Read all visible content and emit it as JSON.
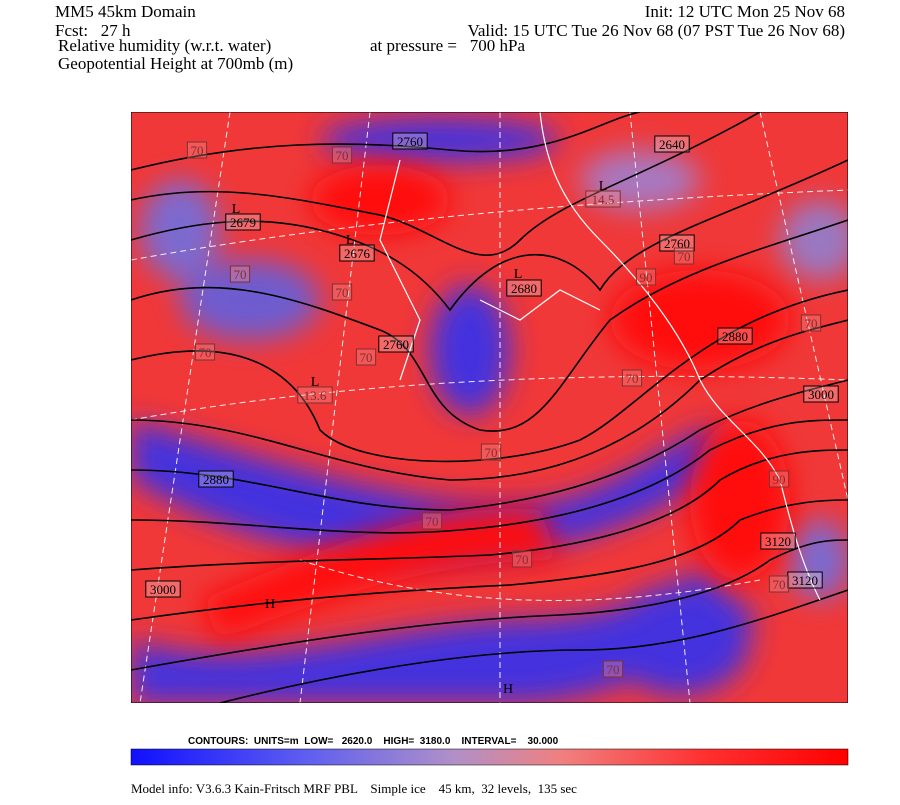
{
  "header": {
    "domain": "MM5 45km Domain",
    "forecast": "Fcst:   27 h",
    "field1": "Relative humidity (w.r.t. water)",
    "pressure": "at pressure =   700 hPa",
    "field2": "Geopotential Height at 700mb (m)",
    "init": "Init: 12 UTC Mon 25 Nov 68",
    "valid": "Valid: 15 UTC Tue 26 Nov 68 (07 PST Tue 26 Nov 68)"
  },
  "map": {
    "height_labels": [
      "2760",
      "2640",
      "2760",
      "2680",
      "2676",
      "2679",
      "2760",
      "2880",
      "3000",
      "2880",
      "3000",
      "3120",
      "3120"
    ],
    "low_markers": [
      "L",
      "L",
      "L",
      "L",
      "L"
    ],
    "high_markers": [
      "H",
      "H"
    ],
    "rh_labels": [
      "70",
      "70",
      "70",
      "70",
      "70",
      "70",
      "70",
      "70",
      "70",
      "70",
      "70",
      "70",
      "70",
      "70",
      "90",
      "90",
      "14.5",
      "13.6"
    ]
  },
  "contours": "CONTOURS:  UNITS=m  LOW=   2620.0    HIGH=  3180.0    INTERVAL=    30.000",
  "footer": "Model info: V3.6.3 Kain-Fritsch MRF PBL    Simple ice    45 km,  32 levels,  135 sec"
}
